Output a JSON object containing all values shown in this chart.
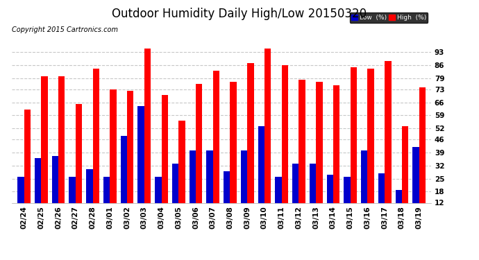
{
  "title": "Outdoor Humidity Daily High/Low 20150320",
  "copyright": "Copyright 2015 Cartronics.com",
  "dates": [
    "02/24",
    "02/25",
    "02/26",
    "02/27",
    "02/28",
    "03/01",
    "03/02",
    "03/03",
    "03/04",
    "03/05",
    "03/06",
    "03/07",
    "03/08",
    "03/09",
    "03/10",
    "03/11",
    "03/12",
    "03/13",
    "03/14",
    "03/15",
    "03/16",
    "03/17",
    "03/18",
    "03/19"
  ],
  "high": [
    62,
    80,
    80,
    65,
    84,
    73,
    72,
    95,
    70,
    56,
    76,
    83,
    77,
    87,
    95,
    86,
    78,
    77,
    75,
    85,
    84,
    88,
    53,
    74
  ],
  "low": [
    26,
    36,
    37,
    26,
    30,
    26,
    48,
    64,
    26,
    33,
    40,
    40,
    29,
    40,
    53,
    26,
    33,
    33,
    27,
    26,
    40,
    28,
    19,
    42
  ],
  "high_color": "#ff0000",
  "low_color": "#0000cc",
  "bg_color": "#ffffff",
  "plot_bg_color": "#ffffff",
  "grid_color": "#c8c8c8",
  "ylim": [
    12,
    100
  ],
  "yticks": [
    12,
    18,
    25,
    32,
    39,
    46,
    52,
    59,
    66,
    73,
    79,
    86,
    93
  ],
  "legend_low_label": "Low  (%)",
  "legend_high_label": "High  (%)",
  "bar_width": 0.38,
  "title_fontsize": 12,
  "tick_fontsize": 7.5,
  "copyright_fontsize": 7
}
